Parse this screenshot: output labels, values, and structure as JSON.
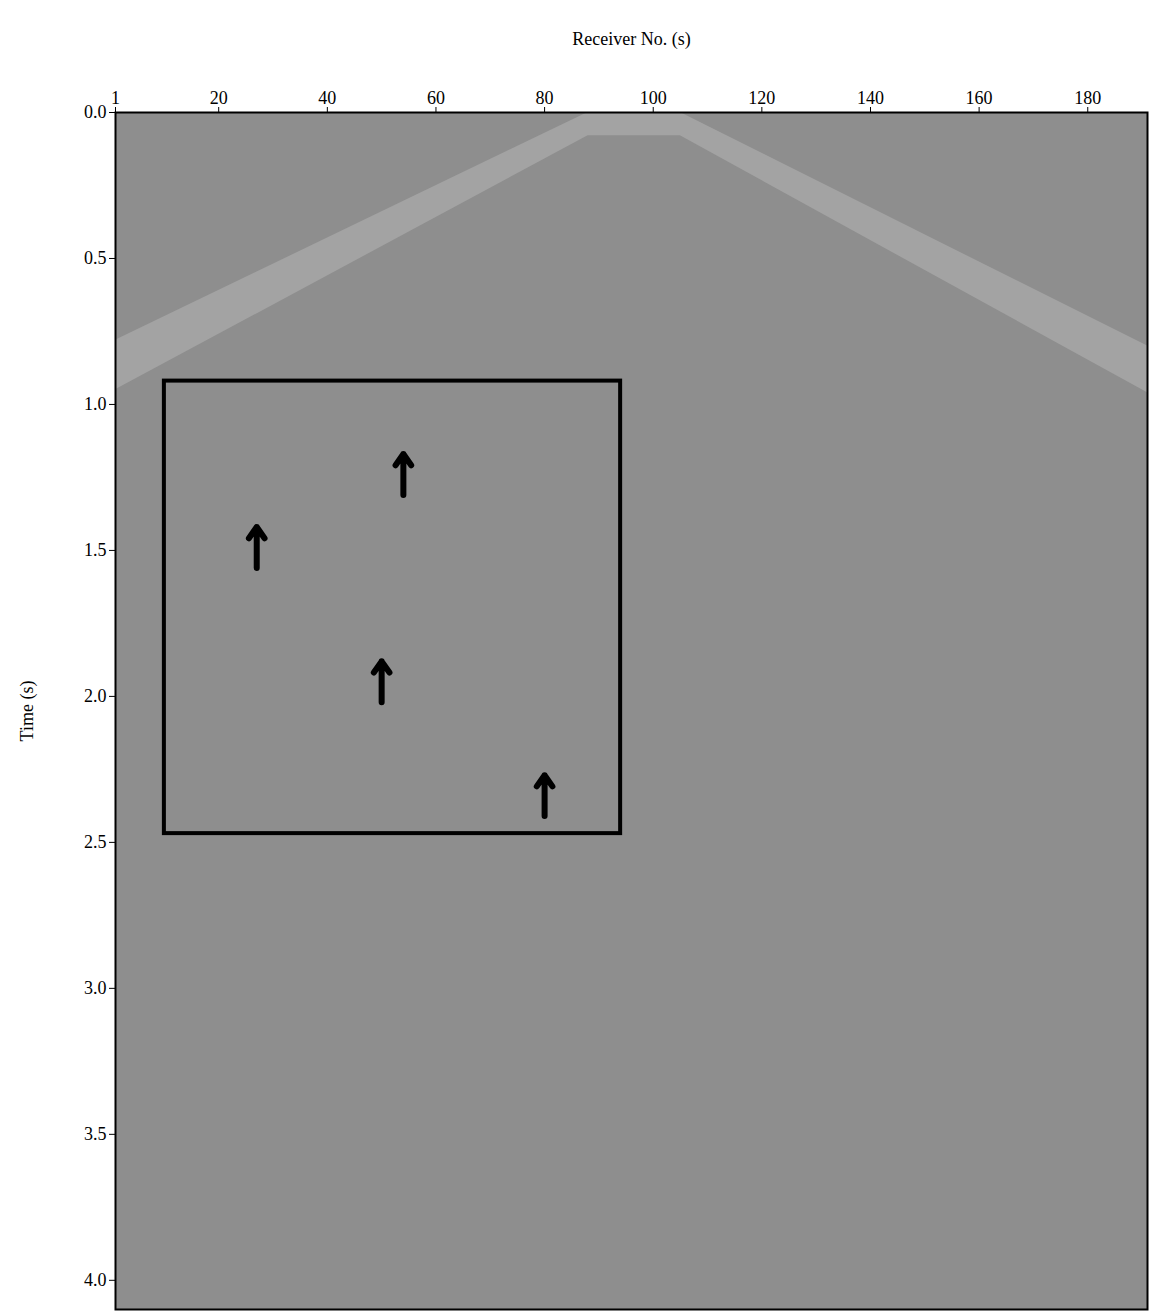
{
  "chart_data": {
    "type": "seismic_section",
    "xlabel": "Receiver No. (s)",
    "ylabel": "Time (s)",
    "xlim": [
      1,
      191
    ],
    "xticks": [
      1,
      20,
      40,
      60,
      80,
      100,
      120,
      140,
      160,
      180
    ],
    "ylim": [
      0,
      4.1
    ],
    "yticks": [
      {
        "value": 0,
        "label": "0.0"
      },
      0.5,
      {
        "value": 1,
        "label": "1.0"
      },
      1.5,
      {
        "value": 2,
        "label": "2.0"
      },
      2.5,
      {
        "value": 3,
        "label": "3.0"
      },
      3.5,
      {
        "value": 4,
        "label": "4.0"
      }
    ],
    "mute_zone": {
      "x": [
        1,
        88,
        105,
        191
      ],
      "top": [
        0.78,
        0,
        0,
        0.8
      ],
      "bottom": [
        0.95,
        0.08,
        0.08,
        0.96
      ]
    },
    "box": {
      "x1": 10,
      "x2": 94,
      "y1": 0.92,
      "y2": 2.47
    },
    "arrows": {
      "x": [
        27,
        54,
        50,
        80
      ],
      "y": [
        1.42,
        1.17,
        1.88,
        2.27
      ]
    }
  }
}
